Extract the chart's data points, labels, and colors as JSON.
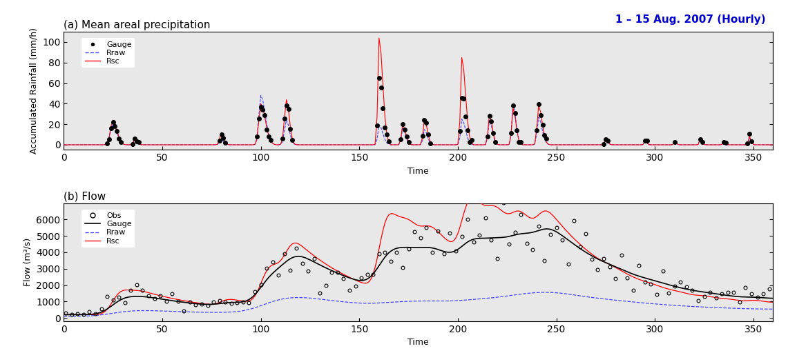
{
  "title_a": "(a) Mean areal precipitation",
  "title_b": "(b) Flow",
  "date_label": "1 – 15 Aug. 2007 (Hourly)",
  "xlabel": "Time",
  "ylabel_a": "Accumulated Rainfall (mm/h)",
  "ylabel_b": "Flow (m³/s)",
  "xlim": [
    0,
    360
  ],
  "ylim_a": [
    -5,
    110
  ],
  "ylim_b": [
    -200,
    7000
  ],
  "yticks_a": [
    0,
    20,
    40,
    60,
    80,
    100
  ],
  "yticks_b": [
    0,
    1000,
    2000,
    3000,
    4000,
    5000,
    6000
  ],
  "xticks": [
    0,
    50,
    100,
    150,
    200,
    250,
    300,
    350
  ],
  "gauge_color": "black",
  "rraw_color": "#4444ff",
  "rsc_color": "red",
  "obs_color": "black",
  "bg_color": "#e8e8e8",
  "date_color": "#0000cc"
}
